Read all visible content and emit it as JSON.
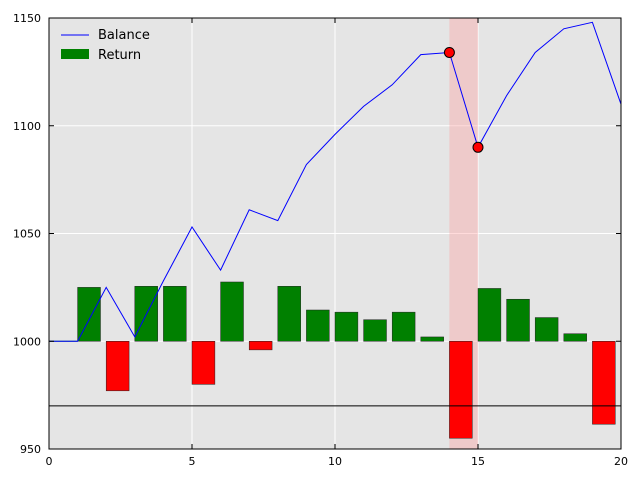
{
  "chart_data": {
    "type": "bar",
    "title": "",
    "xlabel": "",
    "ylabel": "",
    "xlim": [
      0,
      20
    ],
    "ylim": [
      950,
      1150
    ],
    "xticks": [
      0,
      5,
      10,
      15,
      20
    ],
    "yticks": [
      950,
      1000,
      1050,
      1100,
      1150
    ],
    "grid": true,
    "background": "#e5e5e5",
    "legend": {
      "placement": "top-left",
      "entries": [
        {
          "label": "Balance",
          "kind": "line",
          "color": "#0000ff"
        },
        {
          "label": "Return",
          "kind": "bar",
          "color": "#008000"
        }
      ]
    },
    "series": [
      {
        "name": "Balance",
        "type": "line",
        "color": "#0000ff",
        "x": [
          0,
          1,
          2,
          3,
          4,
          5,
          6,
          7,
          8,
          9,
          10,
          11,
          12,
          13,
          14,
          15,
          16,
          17,
          18,
          19,
          20
        ],
        "y": [
          1000,
          1000,
          1025,
          1002,
          1028,
          1053,
          1033,
          1061,
          1056,
          1082,
          1096,
          1109,
          1119,
          1133,
          1134,
          1090,
          1114,
          1134,
          1145,
          1148,
          1110
        ]
      },
      {
        "name": "Return",
        "type": "bar",
        "positive_color": "#008000",
        "negative_color": "#ff0000",
        "x": [
          1,
          2,
          3,
          4,
          5,
          6,
          7,
          8,
          9,
          10,
          11,
          12,
          13,
          14,
          15,
          16,
          17,
          18,
          19
        ],
        "values": [
          25,
          -23,
          25.5,
          25.5,
          -20,
          27.5,
          -4,
          25.5,
          14.5,
          13.5,
          10,
          13.5,
          2,
          -45,
          24.5,
          19.5,
          11,
          3.5,
          -38.5
        ]
      }
    ],
    "markers": [
      {
        "x": 14,
        "y": 1134,
        "color": "#ff0000"
      },
      {
        "x": 15,
        "y": 1090,
        "color": "#ff0000"
      }
    ],
    "highlight_span": {
      "x": [
        14,
        15
      ],
      "color": "#ff9999"
    },
    "hline": {
      "y": 970,
      "color": "#000000"
    },
    "baseline_segment": {
      "x": [
        0,
        1
      ],
      "y": 1000,
      "color": "#008000"
    }
  }
}
